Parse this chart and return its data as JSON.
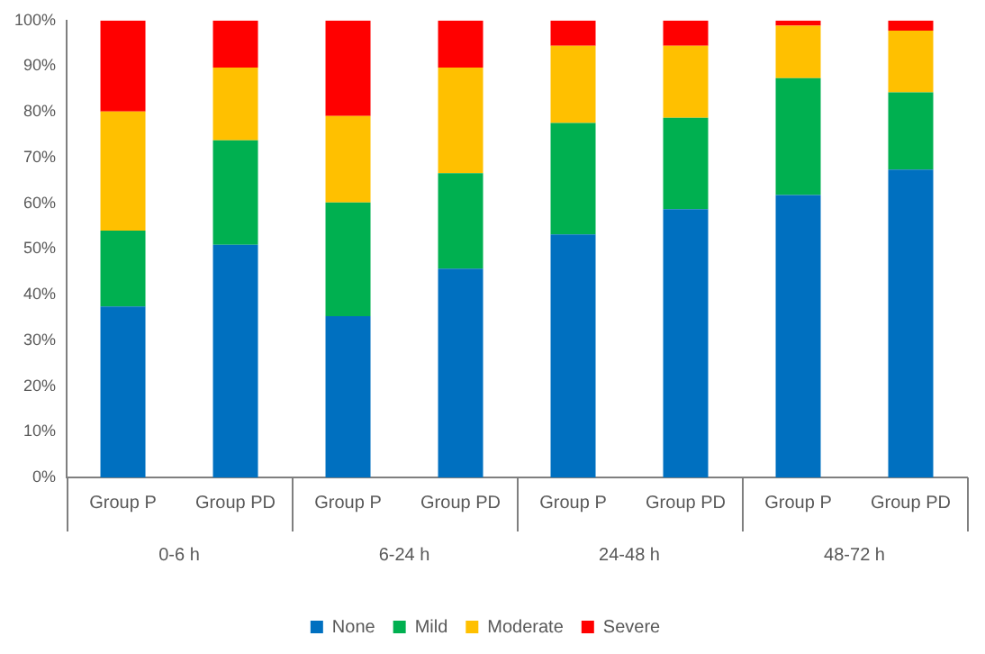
{
  "chart_data": {
    "type": "bar",
    "stacked": true,
    "categories": [
      "Group P",
      "Group PD",
      "Group P",
      "Group PD",
      "Group P",
      "Group PD",
      "Group P",
      "Group PD"
    ],
    "series": [
      {
        "name": "None",
        "color": "#0070c0",
        "values": [
          37.4,
          50.9,
          35.3,
          45.7,
          53.2,
          58.7,
          61.8,
          67.4
        ]
      },
      {
        "name": "Mild",
        "color": "#00b050",
        "values": [
          16.6,
          22.9,
          24.9,
          20.9,
          24.4,
          20.0,
          25.6,
          16.9
        ]
      },
      {
        "name": "Moderate",
        "color": "#ffc000",
        "values": [
          26.1,
          15.9,
          18.9,
          23.1,
          16.9,
          15.8,
          11.5,
          13.5
        ]
      },
      {
        "name": "Severe",
        "color": "#ff0000",
        "values": [
          19.9,
          10.3,
          20.9,
          10.3,
          5.5,
          5.5,
          1.1,
          2.2
        ]
      }
    ],
    "annotations": [
      "0-6 h",
      "6-24 h",
      "24-48 h",
      "48-72 h"
    ],
    "ylim": [
      0,
      100
    ],
    "yticks": [
      {
        "value": 0,
        "label": "0%"
      },
      {
        "value": 10,
        "label": "10%"
      },
      {
        "value": 20,
        "label": "20%"
      },
      {
        "value": 30,
        "label": "30%"
      },
      {
        "value": 40,
        "label": "40%"
      },
      {
        "value": 50,
        "label": "50%"
      },
      {
        "value": 60,
        "label": "60%"
      },
      {
        "value": 70,
        "label": "70%"
      },
      {
        "value": 80,
        "label": "80%"
      },
      {
        "value": 90,
        "label": "90%"
      },
      {
        "value": 100,
        "label": "100%"
      }
    ],
    "grid": false,
    "legend": "bottom"
  }
}
